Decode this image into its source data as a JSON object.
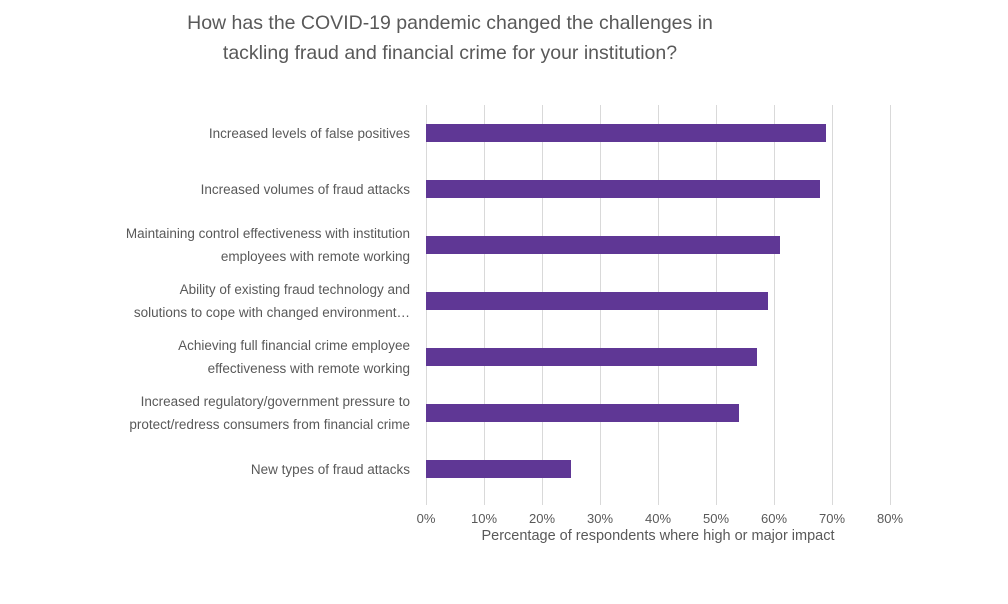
{
  "chart_data": {
    "type": "bar",
    "orientation": "horizontal",
    "title": "How has the COVID-19 pandemic changed the challenges in\ntackling fraud and financial crime for your institution?",
    "categories": [
      "Increased levels of false positives",
      "Increased volumes of fraud attacks",
      "Maintaining control effectiveness with institution\nemployees with remote working",
      "Ability of existing fraud technology and\nsolutions to cope with changed environment…",
      "Achieving full financial crime employee\neffectiveness with remote working",
      "Increased regulatory/government pressure to\nprotect/redress consumers from financial crime",
      "New types of fraud attacks"
    ],
    "values": [
      69,
      68,
      61,
      59,
      57,
      54,
      25
    ],
    "xlabel": "Percentage of respondents where high or major impact",
    "xlim": [
      0,
      80
    ],
    "xticks": [
      "0%",
      "10%",
      "20%",
      "30%",
      "40%",
      "50%",
      "60%",
      "70%",
      "80%"
    ],
    "grid": "vertical",
    "legend": "none",
    "bar_color": "#5f3795",
    "text_color": "#595959",
    "gridline_color": "#d9d9d9"
  }
}
